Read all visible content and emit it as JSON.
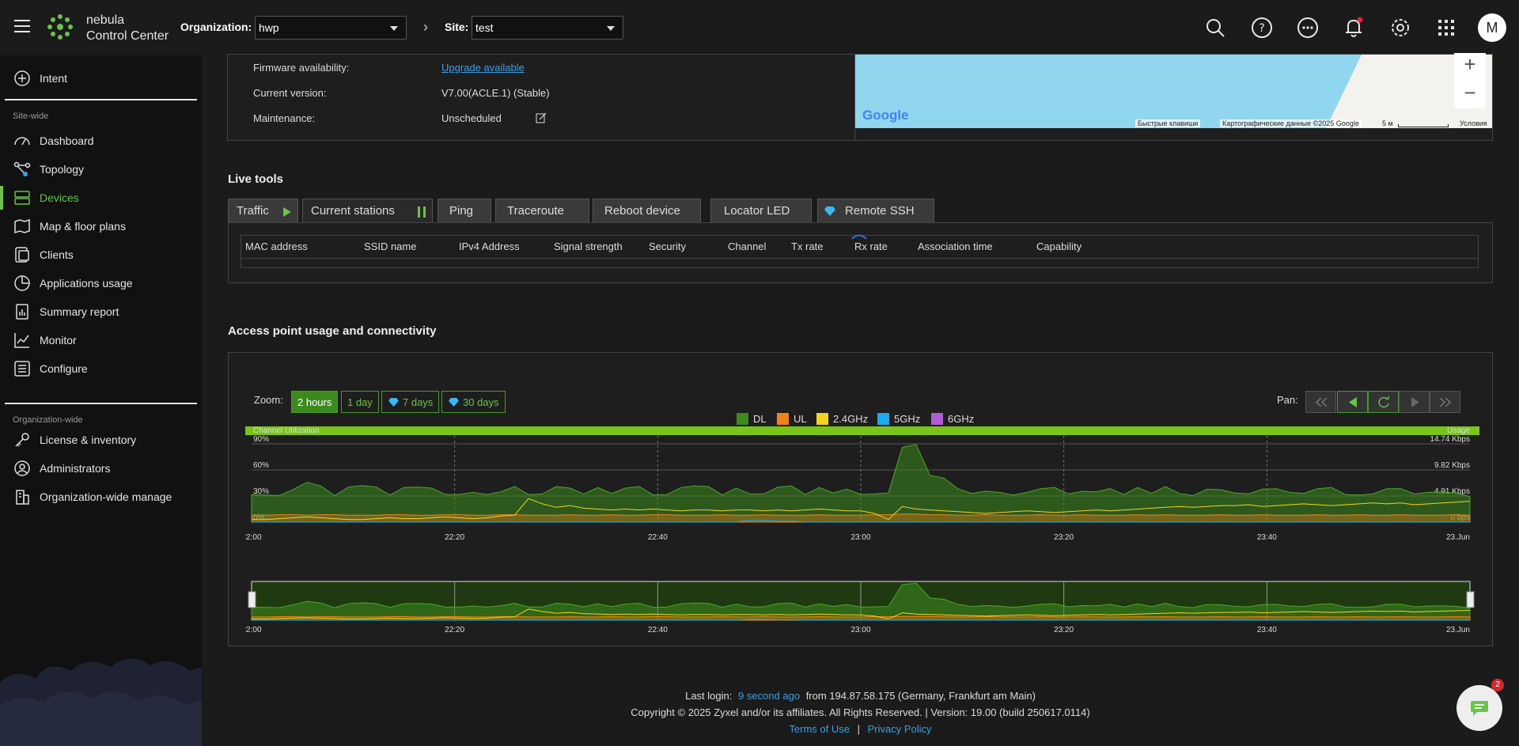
{
  "header": {
    "brand_line1": "nebula",
    "brand_line2": "Control Center",
    "org_label": "Organization:",
    "org_value": "hwp",
    "site_label": "Site:",
    "site_value": "test",
    "avatar_initial": "M"
  },
  "sidebar": {
    "intent": "Intent",
    "site_wide_label": "Site-wide",
    "site_items": [
      "Dashboard",
      "Topology",
      "Devices",
      "Map & floor plans",
      "Clients",
      "Applications usage",
      "Summary report",
      "Monitor",
      "Configure"
    ],
    "org_wide_label": "Organization-wide",
    "org_items": [
      "License & inventory",
      "Administrators",
      "Organization-wide manage"
    ]
  },
  "device_info": {
    "firmware_label": "Firmware availability:",
    "firmware_value": "Upgrade available",
    "version_label": "Current version:",
    "version_value": "V7.00(ACLE.1) (Stable)",
    "maintenance_label": "Maintenance:",
    "maintenance_value": "Unscheduled"
  },
  "map": {
    "google": "Google",
    "keyboard": "Быстрые клавиши",
    "mapdata": "Картографические данные ©2025 Google",
    "scale": "5 м",
    "terms": "Условия"
  },
  "live_tools": {
    "title": "Live tools",
    "tabs": [
      "Traffic",
      "Current stations",
      "Ping",
      "Traceroute",
      "Reboot device",
      "Locator LED",
      "Remote SSH"
    ],
    "columns": [
      "MAC address",
      "SSID name",
      "IPv4 Address",
      "Signal strength",
      "Security",
      "Channel",
      "Tx rate",
      "Rx rate",
      "Association time",
      "Capability"
    ]
  },
  "usage": {
    "title": "Access point usage and connectivity",
    "zoom_label": "Zoom:",
    "zoom_options": [
      "2 hours",
      "1 day",
      "7 days",
      "30 days"
    ],
    "pan_label": "Pan:",
    "legend": [
      {
        "name": "DL",
        "color": "#3c8a1e"
      },
      {
        "name": "UL",
        "color": "#f0821e"
      },
      {
        "name": "2.4GHz",
        "color": "#f5d31e"
      },
      {
        "name": "5GHz",
        "color": "#1ea8f0"
      },
      {
        "name": "6GHz",
        "color": "#b35ad6"
      }
    ]
  },
  "chart_data": {
    "type": "area",
    "left_axis_label": "Channel Utilization",
    "right_axis_label": "Usage",
    "left_ticks": [
      "90%",
      "60%",
      "30%",
      "0%"
    ],
    "right_ticks": [
      "14.74 Kbps",
      "9.82 Kbps",
      "4.91 Kbps",
      "0 bps"
    ],
    "x_ticks": [
      "22:00",
      "22:20",
      "22:40",
      "23:00",
      "23:20",
      "23:40",
      "23.Jun"
    ],
    "ylim_left": [
      0,
      90
    ],
    "ylim_right": [
      0,
      14.74
    ],
    "series": [
      {
        "name": "DL",
        "unit": "Kbps",
        "values": [
          5.2,
          5.1,
          5.0,
          6.1,
          7.5,
          6.8,
          5.0,
          6.6,
          6.9,
          6.6,
          5.1,
          6.5,
          6.6,
          6.4,
          5.2,
          5.2,
          5.6,
          5.2,
          5.7,
          6.7,
          5.2,
          5.3,
          6.7,
          6.4,
          5.3,
          6.5,
          5.4,
          6.4,
          6.7,
          5.1,
          5.2,
          6.5,
          6.8,
          6.7,
          5.1,
          6.4,
          5.3,
          5.3,
          6.6,
          6.8,
          5.2,
          6.5,
          5.5,
          6.2,
          5.2,
          5.3,
          5.5,
          14.1,
          14.6,
          8.8,
          8.3,
          6.3,
          5.4,
          5.8,
          5.6,
          5.1,
          5.6,
          6.3,
          6.5,
          5.3,
          5.8,
          5.7,
          6.3,
          5.2,
          6.5,
          5.4,
          6.7,
          5.4,
          5.0,
          6.2,
          6.1,
          5.5,
          5.3,
          6.2,
          6.3,
          5.6,
          5.4,
          6.3,
          6.5,
          5.2,
          5.1,
          5.3,
          6.3,
          6.3,
          5.3,
          5.6,
          5.7,
          5.5,
          4.8
        ]
      },
      {
        "name": "UL",
        "unit": "Kbps",
        "values": [
          1.3,
          1.3,
          1.4,
          1.4,
          1.3,
          1.4,
          1.4,
          1.3,
          1.3,
          1.3,
          1.4,
          1.4,
          1.3,
          1.3,
          1.4,
          1.4,
          1.3,
          1.3,
          1.4,
          1.4,
          1.3,
          1.3,
          1.3,
          1.4,
          1.3,
          1.3,
          1.4,
          1.3,
          1.3,
          1.4,
          1.4,
          1.3,
          1.3,
          1.3,
          1.4,
          1.3,
          1.3,
          1.4,
          1.3,
          1.3,
          1.3,
          1.4,
          1.3,
          1.3,
          1.3,
          1.4,
          1.4,
          1.5,
          1.5,
          1.4,
          1.4,
          1.3,
          1.3,
          1.4,
          1.3,
          1.3,
          1.3,
          1.4,
          1.3,
          1.3,
          1.4,
          1.3,
          1.3,
          1.3,
          1.4,
          1.3,
          1.4,
          1.3,
          1.3,
          1.3,
          1.4,
          1.3,
          1.3,
          1.4,
          1.3,
          1.3,
          1.3,
          1.4,
          1.3,
          1.3,
          1.4,
          1.3,
          1.3,
          1.4,
          1.3,
          1.3,
          1.3,
          1.4,
          1.3
        ]
      },
      {
        "name": "2.4GHz",
        "unit": "%",
        "values": [
          3,
          3,
          4,
          5,
          6,
          5,
          4,
          3,
          3,
          4,
          5,
          4,
          4,
          5,
          6,
          5,
          4,
          5,
          7,
          8,
          27,
          21,
          17,
          19,
          16,
          15,
          14,
          15,
          14,
          15,
          14,
          13,
          14,
          14,
          13,
          14,
          14,
          13,
          14,
          13,
          14,
          15,
          14,
          13,
          13,
          10,
          3,
          18,
          15,
          14,
          13,
          12,
          11,
          10,
          11,
          12,
          13,
          12,
          11,
          12,
          13,
          14,
          13,
          14,
          15,
          16,
          17,
          18,
          17,
          18,
          19,
          19,
          20,
          18,
          19,
          20,
          21,
          20,
          19,
          20,
          21,
          22,
          21,
          22,
          20,
          21,
          22,
          23,
          24
        ]
      },
      {
        "name": "5GHz",
        "unit": "%",
        "values": [
          0,
          0,
          0,
          0,
          0,
          0,
          0,
          0,
          0,
          0,
          0,
          0,
          0,
          0,
          0,
          0,
          0,
          0,
          0,
          0,
          0,
          0,
          0,
          0,
          0,
          0,
          0,
          0,
          0,
          0,
          0,
          0,
          0,
          0,
          0,
          0,
          2,
          2,
          1,
          1,
          0,
          0,
          0,
          0,
          0,
          0,
          0,
          0,
          0,
          0,
          0,
          0,
          0,
          0,
          0,
          0,
          0,
          0,
          0,
          0,
          0,
          0,
          0,
          0,
          0,
          0,
          0,
          0,
          0,
          0,
          0,
          0,
          0,
          0,
          0,
          0,
          0,
          0,
          0,
          0,
          0,
          0,
          0,
          0,
          0,
          0,
          0,
          0,
          0
        ]
      }
    ]
  },
  "footer": {
    "last_login_label": "Last login:",
    "last_login_ago": "9 second ago",
    "last_login_from": "from 194.87.58.175 (Germany, Frankfurt am Main)",
    "copyright": "Copyright © 2025 Zyxel and/or its affiliates. All Rights Reserved. | Version: 19.00 (build 250617.0114)",
    "terms": "Terms of Use",
    "privacy": "Privacy Policy",
    "chat_badge": "2"
  }
}
